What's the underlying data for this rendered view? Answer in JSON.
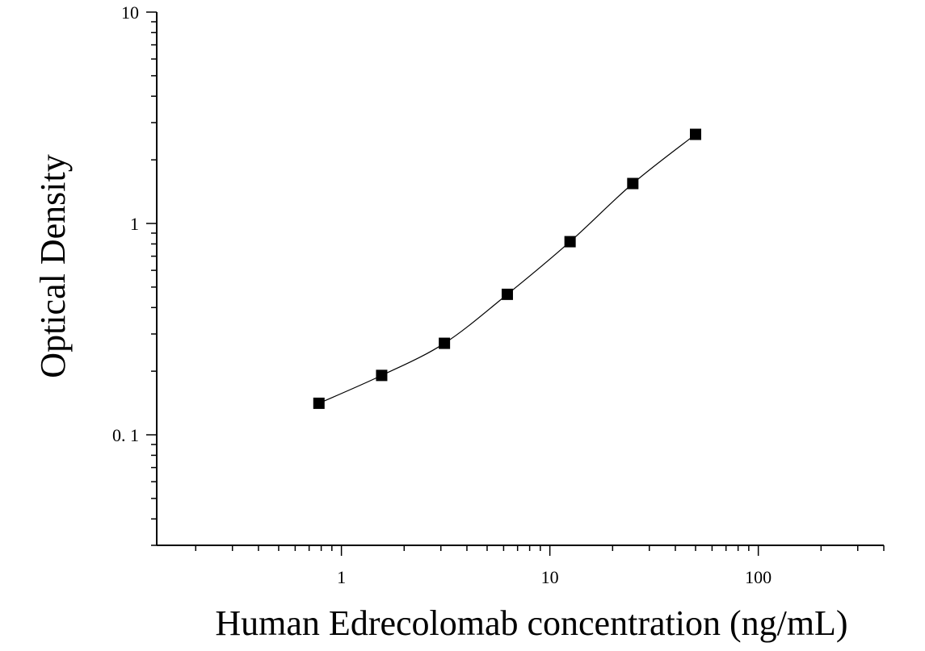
{
  "chart_data": {
    "type": "scatter",
    "title": "",
    "xlabel": "Human Edrecolomab concentration (ng/mL)",
    "ylabel": "Optical Density",
    "xscale": "log",
    "yscale": "log",
    "xlim": [
      0.13,
      400
    ],
    "ylim": [
      0.03,
      10
    ],
    "grid": false,
    "legend": "none",
    "x_ticks": [
      {
        "value": 1,
        "label": "1"
      },
      {
        "value": 10,
        "label": "10"
      },
      {
        "value": 100,
        "label": "100"
      }
    ],
    "y_ticks": [
      {
        "value": 0.1,
        "label": "0. 1"
      },
      {
        "value": 1,
        "label": "1"
      },
      {
        "value": 10,
        "label": "10"
      }
    ],
    "series": [
      {
        "marker": "square",
        "color": "#000000",
        "fit_curve": true,
        "points": [
          {
            "x": 0.78,
            "y": 0.141
          },
          {
            "x": 1.56,
            "y": 0.191
          },
          {
            "x": 3.12,
            "y": 0.271
          },
          {
            "x": 6.25,
            "y": 0.462
          },
          {
            "x": 12.5,
            "y": 0.82
          },
          {
            "x": 25,
            "y": 1.545
          },
          {
            "x": 50,
            "y": 2.64
          }
        ]
      }
    ]
  }
}
